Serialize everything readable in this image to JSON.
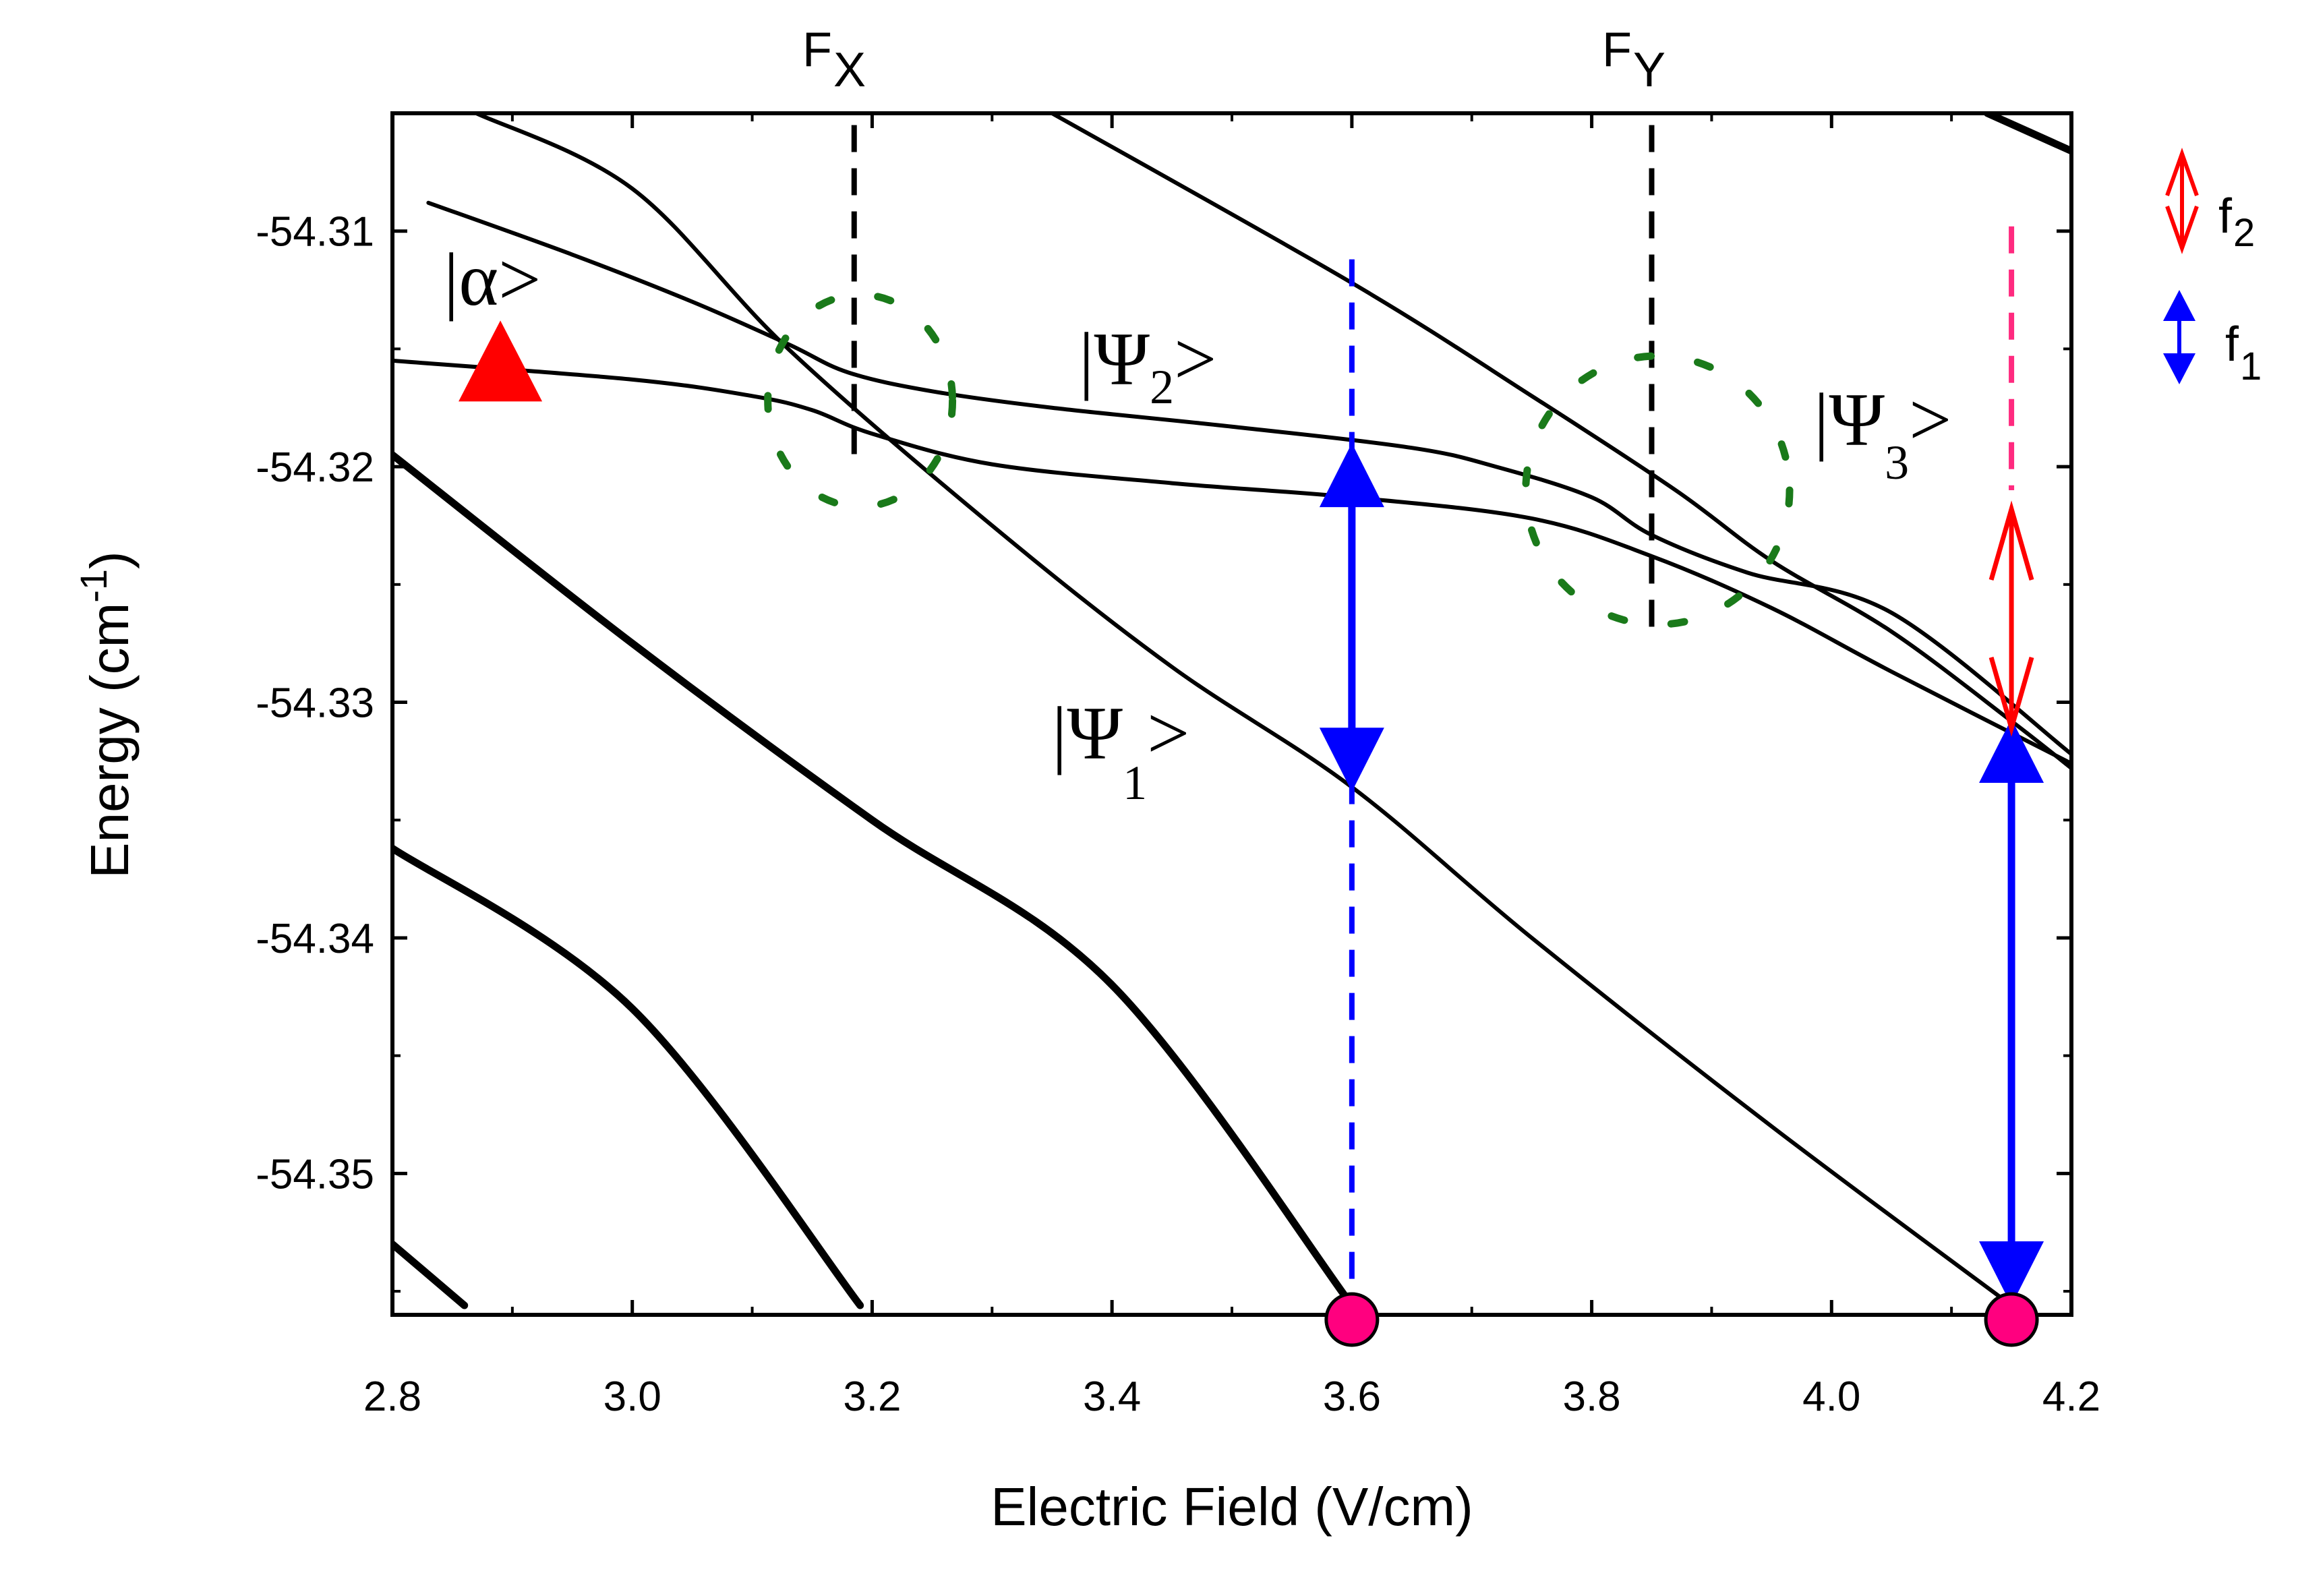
{
  "chart_data": {
    "type": "line",
    "xlabel": "Electric Field (V/cm)",
    "ylabel_main": "Energy (cm",
    "ylabel_sup": "-1",
    "ylabel_close": ")",
    "xlim": [
      2.8,
      4.2
    ],
    "ylim": [
      -54.356,
      -54.305
    ],
    "x_ticks": [
      2.8,
      3.0,
      3.2,
      3.4,
      3.6,
      3.8,
      4.0,
      4.2
    ],
    "x_tick_labels": [
      "2.8",
      "3.0",
      "3.2",
      "3.4",
      "3.6",
      "3.8",
      "4.0",
      "4.2"
    ],
    "y_ticks": [
      -54.31,
      -54.32,
      -54.33,
      -54.34,
      -54.35
    ],
    "y_tick_labels": [
      "-54.31",
      "-54.32",
      "-54.33",
      "-54.34",
      "-54.35"
    ],
    "series": [
      {
        "name": "alpha-psi2-psi3-branch",
        "width": 2,
        "points": [
          [
            2.8,
            -54.3155
          ],
          [
            3.0,
            -54.3163
          ],
          [
            3.1,
            -54.317
          ],
          [
            3.15,
            -54.3176
          ],
          [
            3.2,
            -54.3186
          ],
          [
            3.3,
            -54.3199
          ],
          [
            3.45,
            -54.3207
          ],
          [
            3.6,
            -54.3213
          ],
          [
            3.75,
            -54.3222
          ],
          [
            3.85,
            -54.3238
          ],
          [
            3.95,
            -54.326
          ],
          [
            4.05,
            -54.3287
          ],
          [
            4.2,
            -54.3326
          ]
        ]
      },
      {
        "name": "psi1-psi2-upper-branch",
        "width": 2,
        "points": [
          [
            2.83,
            -54.3088
          ],
          [
            2.95,
            -54.311
          ],
          [
            3.05,
            -54.313
          ],
          [
            3.13,
            -54.3148
          ],
          [
            3.18,
            -54.316
          ],
          [
            3.25,
            -54.3168
          ],
          [
            3.35,
            -54.3175
          ],
          [
            3.5,
            -54.3183
          ],
          [
            3.65,
            -54.3192
          ],
          [
            3.72,
            -54.32
          ],
          [
            3.8,
            -54.3213
          ],
          [
            3.85,
            -54.3229
          ],
          [
            3.93,
            -54.3245
          ],
          [
            4.05,
            -54.3262
          ],
          [
            4.2,
            -54.3322
          ]
        ]
      },
      {
        "name": "upper-diabatic-line",
        "width": 2,
        "points": [
          [
            2.87,
            -54.305
          ],
          [
            3.0,
            -54.3082
          ],
          [
            3.13,
            -54.315
          ],
          [
            3.3,
            -54.3225
          ],
          [
            3.45,
            -54.3285
          ],
          [
            3.6,
            -54.3336
          ],
          [
            3.75,
            -54.34
          ],
          [
            3.95,
            -54.348
          ],
          [
            4.15,
            -54.3556
          ]
        ]
      },
      {
        "name": "psi3-diabatic-line",
        "width": 2,
        "points": [
          [
            3.35,
            -54.305
          ],
          [
            3.6,
            -54.3122
          ],
          [
            3.75,
            -54.317
          ],
          [
            3.87,
            -54.321
          ],
          [
            3.95,
            -54.324
          ],
          [
            4.05,
            -54.327
          ],
          [
            4.15,
            -54.3308
          ],
          [
            4.2,
            -54.3328
          ]
        ]
      },
      {
        "name": "top-right-line",
        "width": 3,
        "points": [
          [
            4.13,
            -54.305
          ],
          [
            4.2,
            -54.3066
          ]
        ]
      },
      {
        "name": "line-a",
        "width": 3,
        "points": [
          [
            2.8,
            -54.3195
          ],
          [
            3.0,
            -54.3275
          ],
          [
            3.2,
            -54.335
          ],
          [
            3.4,
            -54.342
          ],
          [
            3.6,
            -54.3556
          ]
        ]
      },
      {
        "name": "line-b",
        "width": 3,
        "points": [
          [
            2.8,
            -54.3362
          ],
          [
            3.0,
            -54.343
          ],
          [
            3.19,
            -54.3556
          ]
        ]
      },
      {
        "name": "line-c",
        "width": 3,
        "points": [
          [
            2.8,
            -54.353
          ],
          [
            2.86,
            -54.3556
          ]
        ]
      }
    ],
    "arrows": [
      {
        "name": "f1-arrow-x36",
        "color": "#0000ff",
        "x": 3.6,
        "y_top": -54.319,
        "y_bottom": -54.3338
      },
      {
        "name": "f1-arrow-x415",
        "color": "#0000ff",
        "x": 4.15,
        "y_top": -54.3307,
        "y_bottom": -54.3556
      },
      {
        "name": "f2-arrow-x415",
        "color": "#ff0000",
        "x": 4.15,
        "y_top": -54.3218,
        "y_bottom": -54.3311
      }
    ],
    "markers": [
      {
        "name": "alpha-triangle",
        "shape": "triangle",
        "color": "#ff0000",
        "x": 2.89,
        "y": -54.3158
      },
      {
        "name": "pink-dot-x36",
        "shape": "circle",
        "color": "#ff007f",
        "x": 3.6,
        "y": -54.3562
      },
      {
        "name": "pink-dot-x415",
        "shape": "circle",
        "color": "#ff007f",
        "x": 4.15,
        "y": -54.3562
      }
    ],
    "reference_lines": [
      {
        "name": "fx-dashed-line",
        "color": "#000000",
        "x": 3.185,
        "y_top": -54.3055,
        "y_bottom": -54.32
      },
      {
        "name": "fy-dashed-line",
        "color": "#000000",
        "x": 3.85,
        "y_top": -54.3055,
        "y_bottom": -54.327
      },
      {
        "name": "blue-dashed-line-x36",
        "color": "#0000ff",
        "x": 3.6,
        "y_top": -54.3112,
        "y_bottom": -54.3556
      },
      {
        "name": "pink-dashed-line-x415",
        "color": "#ff2a7f",
        "x": 4.15,
        "y_top": -54.3098,
        "y_bottom": -54.321
      }
    ],
    "ellipses": [
      {
        "name": "green-ellipse-fx",
        "color": "#1a7a1a",
        "cx": 3.19,
        "cy": -54.3172,
        "rx": 0.077,
        "ry": 0.0045
      },
      {
        "name": "green-ellipse-fy",
        "color": "#1a7a1a",
        "cx": 3.855,
        "cy": -54.321,
        "rx": 0.11,
        "ry": 0.0057
      }
    ],
    "annotations": {
      "fx_main": "F",
      "fx_sub": "X",
      "fy_main": "F",
      "fy_sub": "Y",
      "alpha_label": "|α>",
      "psi1_main": "|Ψ",
      "psi1_sub": "1",
      "psi1_close": ">",
      "psi2_main": "|Ψ",
      "psi2_sub": "2",
      "psi2_close": ">",
      "psi3_main": "|Ψ",
      "psi3_sub": "3",
      "psi3_close": ">"
    },
    "legend": {
      "position": "top-right",
      "items": [
        {
          "label_main": "f",
          "label_sub": "2",
          "color": "#ff0000"
        },
        {
          "label_main": "f",
          "label_sub": "1",
          "color": "#0000ff"
        }
      ]
    }
  }
}
